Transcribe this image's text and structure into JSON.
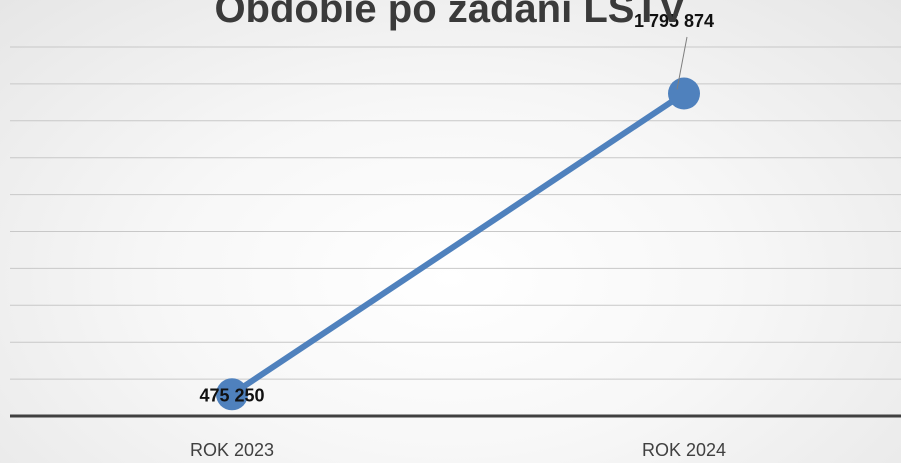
{
  "chart_data": {
    "type": "line",
    "title": "Obdobie po zadaní LSTV",
    "categories": [
      "ROK 2023",
      "ROK 2024"
    ],
    "series": [
      {
        "values": [
          475250,
          1795874
        ],
        "data_labels": [
          "475 250",
          "1 795 874"
        ]
      }
    ],
    "xlabel": "",
    "ylabel": "",
    "ylim": [
      380000,
      2000000
    ],
    "grid": true,
    "legend": "none",
    "colors": {
      "line": "#4f81bd",
      "marker": "#4f81bd",
      "axis": "#404040",
      "grid": "#c8c8c8"
    }
  }
}
